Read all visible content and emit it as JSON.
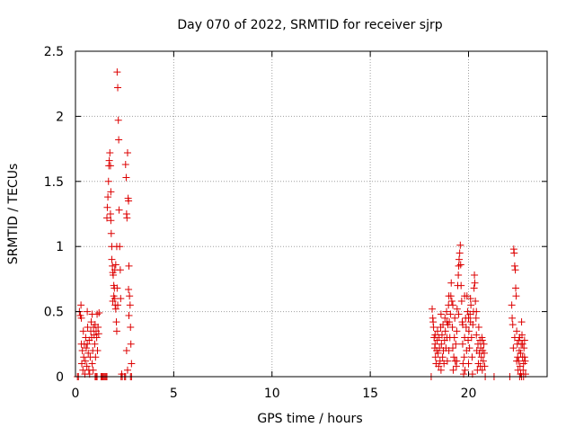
{
  "chart_data": {
    "type": "scatter",
    "title": "Day 070 of 2022, SRMTID for receiver sjrp",
    "xlabel": "GPS time / hours",
    "ylabel": "SRMTID / TECUs",
    "xlim": [
      0,
      24
    ],
    "ylim": [
      0,
      2.5
    ],
    "grid": true,
    "marker": "plus",
    "colors": {
      "series": "#dd0000",
      "grid": "#a0a0a0",
      "axis": "#000000"
    },
    "x_ticks": [
      0,
      5,
      10,
      15,
      20
    ],
    "x_tick_labels": [
      "0",
      "5",
      "10",
      "15",
      "20"
    ],
    "y_ticks": [
      0,
      0.5,
      1,
      1.5,
      2,
      2.5
    ],
    "y_tick_labels": [
      "0",
      "0.5",
      "1",
      "1.5",
      "2",
      "2.5"
    ],
    "series": [
      {
        "name": "sjrp",
        "points": [
          [
            0.1,
            0.0
          ],
          [
            0.15,
            0.0
          ],
          [
            0.2,
            0.5
          ],
          [
            0.25,
            0.47
          ],
          [
            0.28,
            0.55
          ],
          [
            0.3,
            0.25
          ],
          [
            0.32,
            0.1
          ],
          [
            0.35,
            0.2
          ],
          [
            0.38,
            0.05
          ],
          [
            0.4,
            0.35
          ],
          [
            0.42,
            0.15
          ],
          [
            0.45,
            0.25
          ],
          [
            0.48,
            0.02
          ],
          [
            0.5,
            0.12
          ],
          [
            0.52,
            0.3
          ],
          [
            0.55,
            0.22
          ],
          [
            0.58,
            0.08
          ],
          [
            0.6,
            0.25
          ],
          [
            0.62,
            0.38
          ],
          [
            0.65,
            0.18
          ],
          [
            0.68,
            0.05
          ],
          [
            0.7,
            0.28
          ],
          [
            0.72,
            0.02
          ],
          [
            0.75,
            0.15
          ],
          [
            0.78,
            0.35
          ],
          [
            0.8,
            0.42
          ],
          [
            0.82,
            0.3
          ],
          [
            0.85,
            0.1
          ],
          [
            0.88,
            0.2
          ],
          [
            0.9,
            0.05
          ],
          [
            0.92,
            0.38
          ],
          [
            0.95,
            0.32
          ],
          [
            0.98,
            0.25
          ],
          [
            1.0,
            0.4
          ],
          [
            1.02,
            0.15
          ],
          [
            1.05,
            0.35
          ],
          [
            1.08,
            0.3
          ],
          [
            1.1,
            0.48
          ],
          [
            1.12,
            0.2
          ],
          [
            1.15,
            0.38
          ],
          [
            1.18,
            0.33
          ],
          [
            1.2,
            0.49
          ],
          [
            0.3,
            0.45
          ],
          [
            0.6,
            0.5
          ],
          [
            0.85,
            0.48
          ],
          [
            1.0,
            0.0
          ],
          [
            1.05,
            0.0
          ],
          [
            1.1,
            0.0
          ],
          [
            1.3,
            0.0
          ],
          [
            1.35,
            0.0
          ],
          [
            1.4,
            0.0
          ],
          [
            1.45,
            0.0
          ],
          [
            1.5,
            0.0
          ],
          [
            1.55,
            0.0
          ],
          [
            1.6,
            0.0
          ],
          [
            1.6,
            1.22
          ],
          [
            1.62,
            1.3
          ],
          [
            1.65,
            1.38
          ],
          [
            1.68,
            1.5
          ],
          [
            1.7,
            1.62
          ],
          [
            1.72,
            1.66
          ],
          [
            1.75,
            1.72
          ],
          [
            1.78,
            1.62
          ],
          [
            1.8,
            1.2
          ],
          [
            1.82,
            1.1
          ],
          [
            1.85,
            1.0
          ],
          [
            1.88,
            0.85
          ],
          [
            1.9,
            0.8
          ],
          [
            1.92,
            0.78
          ],
          [
            1.95,
            0.7
          ],
          [
            1.98,
            0.68
          ],
          [
            2.0,
            0.6
          ],
          [
            2.02,
            0.55
          ],
          [
            2.05,
            0.52
          ],
          [
            2.08,
            0.42
          ],
          [
            2.1,
            0.35
          ],
          [
            1.9,
            0.58
          ],
          [
            1.95,
            0.62
          ],
          [
            2.0,
            0.82
          ],
          [
            2.05,
            0.86
          ],
          [
            2.1,
            1.0
          ],
          [
            2.12,
            0.68
          ],
          [
            2.15,
            0.55
          ],
          [
            1.85,
            0.9
          ],
          [
            1.8,
            1.42
          ],
          [
            1.78,
            1.25
          ],
          [
            2.12,
            2.34
          ],
          [
            2.15,
            2.22
          ],
          [
            2.18,
            1.97
          ],
          [
            2.2,
            1.82
          ],
          [
            2.22,
            1.28
          ],
          [
            2.25,
            1.0
          ],
          [
            2.28,
            0.82
          ],
          [
            2.3,
            0.6
          ],
          [
            2.32,
            0.0
          ],
          [
            2.35,
            0.02
          ],
          [
            2.38,
            0.0
          ],
          [
            2.5,
            0.0
          ],
          [
            2.55,
            0.0
          ],
          [
            2.55,
            1.63
          ],
          [
            2.58,
            1.53
          ],
          [
            2.6,
            1.25
          ],
          [
            2.62,
            1.22
          ],
          [
            2.65,
            1.72
          ],
          [
            2.68,
            1.37
          ],
          [
            2.7,
            1.35
          ],
          [
            2.72,
            0.85
          ],
          [
            2.75,
            0.62
          ],
          [
            2.78,
            0.55
          ],
          [
            2.8,
            0.38
          ],
          [
            2.82,
            0.25
          ],
          [
            2.85,
            0.1
          ],
          [
            2.6,
            0.2
          ],
          [
            2.65,
            0.05
          ],
          [
            2.7,
            0.67
          ],
          [
            2.72,
            0.47
          ],
          [
            2.8,
            0.0
          ],
          [
            2.85,
            0.0
          ],
          [
            18.1,
            0.0
          ],
          [
            18.15,
            0.52
          ],
          [
            18.18,
            0.45
          ],
          [
            18.2,
            0.42
          ],
          [
            18.22,
            0.38
          ],
          [
            18.25,
            0.3
          ],
          [
            18.28,
            0.22
          ],
          [
            18.3,
            0.25
          ],
          [
            18.32,
            0.15
          ],
          [
            18.35,
            0.1
          ],
          [
            18.38,
            0.2
          ],
          [
            18.4,
            0.28
          ],
          [
            18.42,
            0.35
          ],
          [
            18.45,
            0.18
          ],
          [
            18.48,
            0.08
          ],
          [
            18.5,
            0.3
          ],
          [
            18.52,
            0.22
          ],
          [
            18.55,
            0.12
          ],
          [
            18.58,
            0.38
          ],
          [
            18.6,
            0.05
          ],
          [
            18.62,
            0.25
          ],
          [
            18.65,
            0.32
          ],
          [
            18.68,
            0.15
          ],
          [
            18.7,
            0.4
          ],
          [
            18.72,
            0.2
          ],
          [
            18.75,
            0.1
          ],
          [
            18.78,
            0.28
          ],
          [
            18.8,
            0.45
          ],
          [
            18.82,
            0.35
          ],
          [
            18.85,
            0.22
          ],
          [
            18.88,
            0.5
          ],
          [
            18.9,
            0.3
          ],
          [
            18.92,
            0.12
          ],
          [
            18.95,
            0.4
          ],
          [
            18.98,
            0.55
          ],
          [
            19.0,
            0.62
          ],
          [
            19.02,
            0.42
          ],
          [
            19.05,
            0.3
          ],
          [
            19.08,
            0.48
          ],
          [
            19.1,
            0.62
          ],
          [
            19.12,
            0.72
          ],
          [
            19.15,
            0.58
          ],
          [
            19.18,
            0.38
          ],
          [
            19.2,
            0.22
          ],
          [
            19.22,
            0.05
          ],
          [
            19.25,
            0.15
          ],
          [
            19.28,
            0.3
          ],
          [
            19.3,
            0.45
          ],
          [
            19.32,
            0.12
          ],
          [
            19.35,
            0.25
          ],
          [
            19.38,
            0.08
          ],
          [
            19.4,
            0.35
          ],
          [
            19.42,
            0.52
          ],
          [
            19.45,
            0.7
          ],
          [
            19.48,
            0.78
          ],
          [
            19.5,
            0.85
          ],
          [
            19.52,
            0.9
          ],
          [
            19.55,
            0.95
          ],
          [
            19.58,
            1.01
          ],
          [
            19.6,
            0.86
          ],
          [
            19.62,
            0.7
          ],
          [
            19.65,
            0.58
          ],
          [
            19.68,
            0.42
          ],
          [
            19.7,
            0.25
          ],
          [
            19.72,
            0.1
          ],
          [
            19.75,
            0.02
          ],
          [
            19.78,
            0.15
          ],
          [
            19.8,
            0.3
          ],
          [
            19.82,
            0.05
          ],
          [
            19.85,
            0.45
          ],
          [
            19.88,
            0.38
          ],
          [
            19.9,
            0.2
          ],
          [
            19.92,
            0.62
          ],
          [
            19.95,
            0.5
          ],
          [
            19.98,
            0.28
          ],
          [
            20.0,
            0.1
          ],
          [
            20.02,
            0.35
          ],
          [
            20.05,
            0.22
          ],
          [
            20.08,
            0.48
          ],
          [
            20.1,
            0.6
          ],
          [
            20.12,
            0.55
          ],
          [
            20.15,
            0.3
          ],
          [
            20.18,
            0.15
          ],
          [
            20.2,
            0.02
          ],
          [
            20.22,
            0.4
          ],
          [
            20.25,
            0.5
          ],
          [
            20.28,
            0.68
          ],
          [
            20.3,
            0.78
          ],
          [
            20.32,
            0.72
          ],
          [
            20.35,
            0.58
          ],
          [
            20.38,
            0.45
          ],
          [
            20.4,
            0.32
          ],
          [
            20.42,
            0.2
          ],
          [
            20.45,
            0.05
          ],
          [
            20.48,
            0.25
          ],
          [
            20.5,
            0.1
          ],
          [
            20.52,
            0.38
          ],
          [
            20.55,
            0.18
          ],
          [
            20.58,
            0.28
          ],
          [
            20.6,
            0.08
          ],
          [
            20.62,
            0.22
          ],
          [
            20.65,
            0.15
          ],
          [
            20.68,
            0.3
          ],
          [
            20.7,
            0.05
          ],
          [
            20.72,
            0.2
          ],
          [
            20.75,
            0.12
          ],
          [
            20.78,
            0.25
          ],
          [
            20.8,
            0.18
          ],
          [
            20.82,
            0.08
          ],
          [
            20.85,
            0.0
          ],
          [
            18.3,
            0.32
          ],
          [
            18.6,
            0.48
          ],
          [
            18.9,
            0.42
          ],
          [
            19.2,
            0.55
          ],
          [
            19.5,
            0.48
          ],
          [
            19.8,
            0.62
          ],
          [
            20.1,
            0.42
          ],
          [
            20.4,
            0.5
          ],
          [
            20.7,
            0.28
          ],
          [
            19.0,
            0.2
          ],
          [
            19.4,
            0.12
          ],
          [
            19.7,
            0.4
          ],
          [
            20.0,
            0.45
          ],
          [
            21.3,
            0.0
          ],
          [
            22.1,
            0.0
          ],
          [
            22.2,
            0.55
          ],
          [
            22.22,
            0.45
          ],
          [
            22.25,
            0.4
          ],
          [
            22.28,
            0.22
          ],
          [
            22.3,
            0.98
          ],
          [
            22.32,
            0.95
          ],
          [
            22.35,
            0.85
          ],
          [
            22.38,
            0.82
          ],
          [
            22.4,
            0.68
          ],
          [
            22.42,
            0.62
          ],
          [
            22.45,
            0.35
          ],
          [
            22.48,
            0.25
          ],
          [
            22.5,
            0.15
          ],
          [
            22.52,
            0.05
          ],
          [
            22.55,
            0.12
          ],
          [
            22.58,
            0.2
          ],
          [
            22.6,
            0.3
          ],
          [
            22.62,
            0.08
          ],
          [
            22.65,
            0.18
          ],
          [
            22.68,
            0.25
          ],
          [
            22.7,
            0.42
          ],
          [
            22.72,
            0.32
          ],
          [
            22.75,
            0.15
          ],
          [
            22.78,
            0.05
          ],
          [
            22.8,
            0.1
          ],
          [
            22.82,
            0.22
          ],
          [
            22.85,
            0.28
          ],
          [
            22.88,
            0.12
          ],
          [
            22.9,
            0.02
          ],
          [
            22.35,
            0.3
          ],
          [
            22.45,
            0.12
          ],
          [
            22.55,
            0.28
          ],
          [
            22.65,
            0.02
          ],
          [
            22.75,
            0.25
          ],
          [
            22.85,
            0.15
          ],
          [
            22.6,
            0.0
          ],
          [
            22.7,
            0.0
          ],
          [
            22.8,
            0.0
          ]
        ]
      }
    ]
  }
}
